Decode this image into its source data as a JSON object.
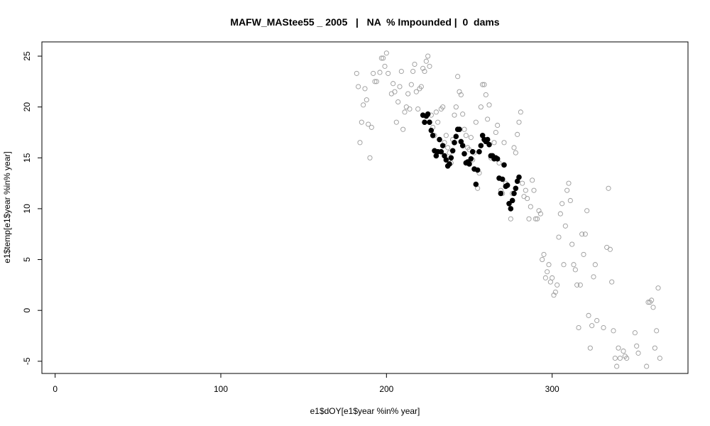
{
  "chart_data": {
    "type": "scatter",
    "title": "MAFW_MAStee55 _ 2005   |   NA  % Impounded |  0  dams",
    "xlabel": "e1$dOY[e1$year %in% year]",
    "ylabel": "e1$temp[e1$year %in% year]",
    "xlim": [
      -8,
      382
    ],
    "ylim": [
      -6.2,
      26.4
    ],
    "xticks": [
      0,
      100,
      200,
      300
    ],
    "yticks": [
      -5,
      0,
      5,
      10,
      15,
      20,
      25
    ],
    "grid": false,
    "series": [
      {
        "marker": "open-circle",
        "color": "#9a9a9a",
        "points": [
          [
            182,
            23.3
          ],
          [
            183,
            22.0
          ],
          [
            184,
            16.5
          ],
          [
            185,
            18.5
          ],
          [
            186,
            20.2
          ],
          [
            187,
            21.8
          ],
          [
            188,
            20.7
          ],
          [
            189,
            18.3
          ],
          [
            190,
            15.0
          ],
          [
            191,
            18.0
          ],
          [
            192,
            23.3
          ],
          [
            193,
            22.5
          ],
          [
            194,
            22.5
          ],
          [
            196,
            23.4
          ],
          [
            197,
            24.8
          ],
          [
            198,
            24.8
          ],
          [
            199,
            24.0
          ],
          [
            200,
            25.3
          ],
          [
            201,
            23.3
          ],
          [
            203,
            21.3
          ],
          [
            204,
            22.3
          ],
          [
            205,
            21.5
          ],
          [
            206,
            18.5
          ],
          [
            207,
            20.5
          ],
          [
            208,
            22.0
          ],
          [
            209,
            23.5
          ],
          [
            210,
            17.8
          ],
          [
            211,
            19.5
          ],
          [
            212,
            20.0
          ],
          [
            213,
            21.3
          ],
          [
            214,
            19.8
          ],
          [
            215,
            22.2
          ],
          [
            216,
            23.5
          ],
          [
            217,
            24.2
          ],
          [
            218,
            21.5
          ],
          [
            219,
            19.8
          ],
          [
            220,
            21.8
          ],
          [
            221,
            22.0
          ],
          [
            222,
            23.8
          ],
          [
            223,
            23.5
          ],
          [
            224,
            24.5
          ],
          [
            225,
            25.0
          ],
          [
            226,
            24.0
          ],
          [
            227,
            19.2
          ],
          [
            228,
            18.0
          ],
          [
            229,
            17.2
          ],
          [
            230,
            19.5
          ],
          [
            231,
            18.5
          ],
          [
            232,
            16.8
          ],
          [
            233,
            19.8
          ],
          [
            234,
            20.0
          ],
          [
            235,
            16.5
          ],
          [
            236,
            17.2
          ],
          [
            237,
            16.0
          ],
          [
            238,
            15.5
          ],
          [
            239,
            14.5
          ],
          [
            240,
            16.8
          ],
          [
            241,
            19.2
          ],
          [
            242,
            20.0
          ],
          [
            243,
            23.0
          ],
          [
            244,
            21.5
          ],
          [
            245,
            21.2
          ],
          [
            246,
            19.3
          ],
          [
            247,
            17.8
          ],
          [
            248,
            17.2
          ],
          [
            249,
            16.0
          ],
          [
            250,
            15.8
          ],
          [
            251,
            17.0
          ],
          [
            252,
            14.8
          ],
          [
            253,
            15.5
          ],
          [
            254,
            18.5
          ],
          [
            255,
            12.0
          ],
          [
            256,
            13.5
          ],
          [
            257,
            20.0
          ],
          [
            258,
            22.2
          ],
          [
            259,
            22.2
          ],
          [
            260,
            21.2
          ],
          [
            261,
            18.8
          ],
          [
            262,
            20.2
          ],
          [
            263,
            15.0
          ],
          [
            264,
            15.2
          ],
          [
            265,
            16.5
          ],
          [
            266,
            17.5
          ],
          [
            267,
            18.2
          ],
          [
            268,
            14.5
          ],
          [
            269,
            11.8
          ],
          [
            270,
            11.5
          ],
          [
            271,
            16.5
          ],
          [
            272,
            12.5
          ],
          [
            273,
            12.3
          ],
          [
            274,
            10.5
          ],
          [
            275,
            9.0
          ],
          [
            276,
            11.5
          ],
          [
            277,
            16.0
          ],
          [
            278,
            15.5
          ],
          [
            279,
            17.3
          ],
          [
            280,
            18.5
          ],
          [
            281,
            19.5
          ],
          [
            282,
            12.5
          ],
          [
            283,
            11.2
          ],
          [
            284,
            11.8
          ],
          [
            285,
            11.0
          ],
          [
            286,
            9.0
          ],
          [
            287,
            10.2
          ],
          [
            288,
            12.8
          ],
          [
            289,
            11.8
          ],
          [
            290,
            9.0
          ],
          [
            291,
            9.0
          ],
          [
            292,
            9.8
          ],
          [
            293,
            9.5
          ],
          [
            294,
            5.0
          ],
          [
            295,
            5.5
          ],
          [
            296,
            3.2
          ],
          [
            297,
            3.8
          ],
          [
            298,
            4.5
          ],
          [
            299,
            2.8
          ],
          [
            300,
            3.2
          ],
          [
            301,
            1.5
          ],
          [
            302,
            1.8
          ],
          [
            303,
            2.5
          ],
          [
            304,
            7.2
          ],
          [
            305,
            9.5
          ],
          [
            306,
            10.5
          ],
          [
            307,
            4.5
          ],
          [
            308,
            8.3
          ],
          [
            309,
            11.8
          ],
          [
            310,
            12.5
          ],
          [
            311,
            10.8
          ],
          [
            312,
            6.5
          ],
          [
            313,
            4.5
          ],
          [
            314,
            4.0
          ],
          [
            315,
            2.5
          ],
          [
            316,
            -1.7
          ],
          [
            317,
            2.5
          ],
          [
            318,
            7.5
          ],
          [
            319,
            5.5
          ],
          [
            320,
            7.5
          ],
          [
            321,
            9.8
          ],
          [
            322,
            -0.5
          ],
          [
            323,
            -3.7
          ],
          [
            324,
            -1.5
          ],
          [
            325,
            3.3
          ],
          [
            326,
            4.5
          ],
          [
            327,
            -1.0
          ],
          [
            331,
            -1.7
          ],
          [
            333,
            6.2
          ],
          [
            334,
            12.0
          ],
          [
            335,
            6.0
          ],
          [
            336,
            2.8
          ],
          [
            337,
            -2.0
          ],
          [
            338,
            -4.7
          ],
          [
            339,
            -5.5
          ],
          [
            340,
            -3.7
          ],
          [
            341,
            -4.7
          ],
          [
            343,
            -4.0
          ],
          [
            344,
            -4.5
          ],
          [
            345,
            -4.7
          ],
          [
            350,
            -2.2
          ],
          [
            351,
            -3.5
          ],
          [
            352,
            -4.2
          ],
          [
            357,
            -5.5
          ],
          [
            358,
            0.8
          ],
          [
            359,
            0.8
          ],
          [
            360,
            1.0
          ],
          [
            361,
            0.3
          ],
          [
            362,
            -3.7
          ],
          [
            363,
            -2.0
          ],
          [
            364,
            2.2
          ],
          [
            365,
            -4.7
          ]
        ]
      },
      {
        "marker": "filled-circle",
        "color": "#000000",
        "points": [
          [
            222,
            19.2
          ],
          [
            223,
            18.5
          ],
          [
            224,
            19.1
          ],
          [
            225,
            19.3
          ],
          [
            226,
            18.5
          ],
          [
            227,
            17.7
          ],
          [
            228,
            17.2
          ],
          [
            229,
            15.7
          ],
          [
            230,
            15.2
          ],
          [
            231,
            15.6
          ],
          [
            232,
            16.8
          ],
          [
            233,
            15.6
          ],
          [
            234,
            16.2
          ],
          [
            235,
            15.2
          ],
          [
            236,
            14.8
          ],
          [
            237,
            14.2
          ],
          [
            238,
            14.4
          ],
          [
            239,
            15.0
          ],
          [
            240,
            15.7
          ],
          [
            241,
            16.5
          ],
          [
            242,
            17.1
          ],
          [
            243,
            17.8
          ],
          [
            244,
            17.8
          ],
          [
            245,
            16.6
          ],
          [
            246,
            16.2
          ],
          [
            247,
            15.4
          ],
          [
            248,
            14.5
          ],
          [
            249,
            14.6
          ],
          [
            250,
            14.4
          ],
          [
            251,
            14.9
          ],
          [
            252,
            15.6
          ],
          [
            253,
            13.9
          ],
          [
            254,
            12.4
          ],
          [
            255,
            13.8
          ],
          [
            256,
            15.6
          ],
          [
            257,
            16.2
          ],
          [
            258,
            17.2
          ],
          [
            259,
            16.8
          ],
          [
            260,
            16.6
          ],
          [
            261,
            16.8
          ],
          [
            262,
            16.3
          ],
          [
            263,
            15.2
          ],
          [
            264,
            15.2
          ],
          [
            265,
            14.9
          ],
          [
            266,
            15.0
          ],
          [
            267,
            14.9
          ],
          [
            268,
            13.0
          ],
          [
            269,
            11.5
          ],
          [
            270,
            12.9
          ],
          [
            271,
            14.3
          ],
          [
            272,
            12.2
          ],
          [
            273,
            12.3
          ],
          [
            274,
            10.5
          ],
          [
            275,
            10.0
          ],
          [
            276,
            10.8
          ],
          [
            277,
            11.5
          ],
          [
            278,
            12.0
          ],
          [
            279,
            12.7
          ],
          [
            280,
            13.1
          ]
        ]
      }
    ]
  }
}
